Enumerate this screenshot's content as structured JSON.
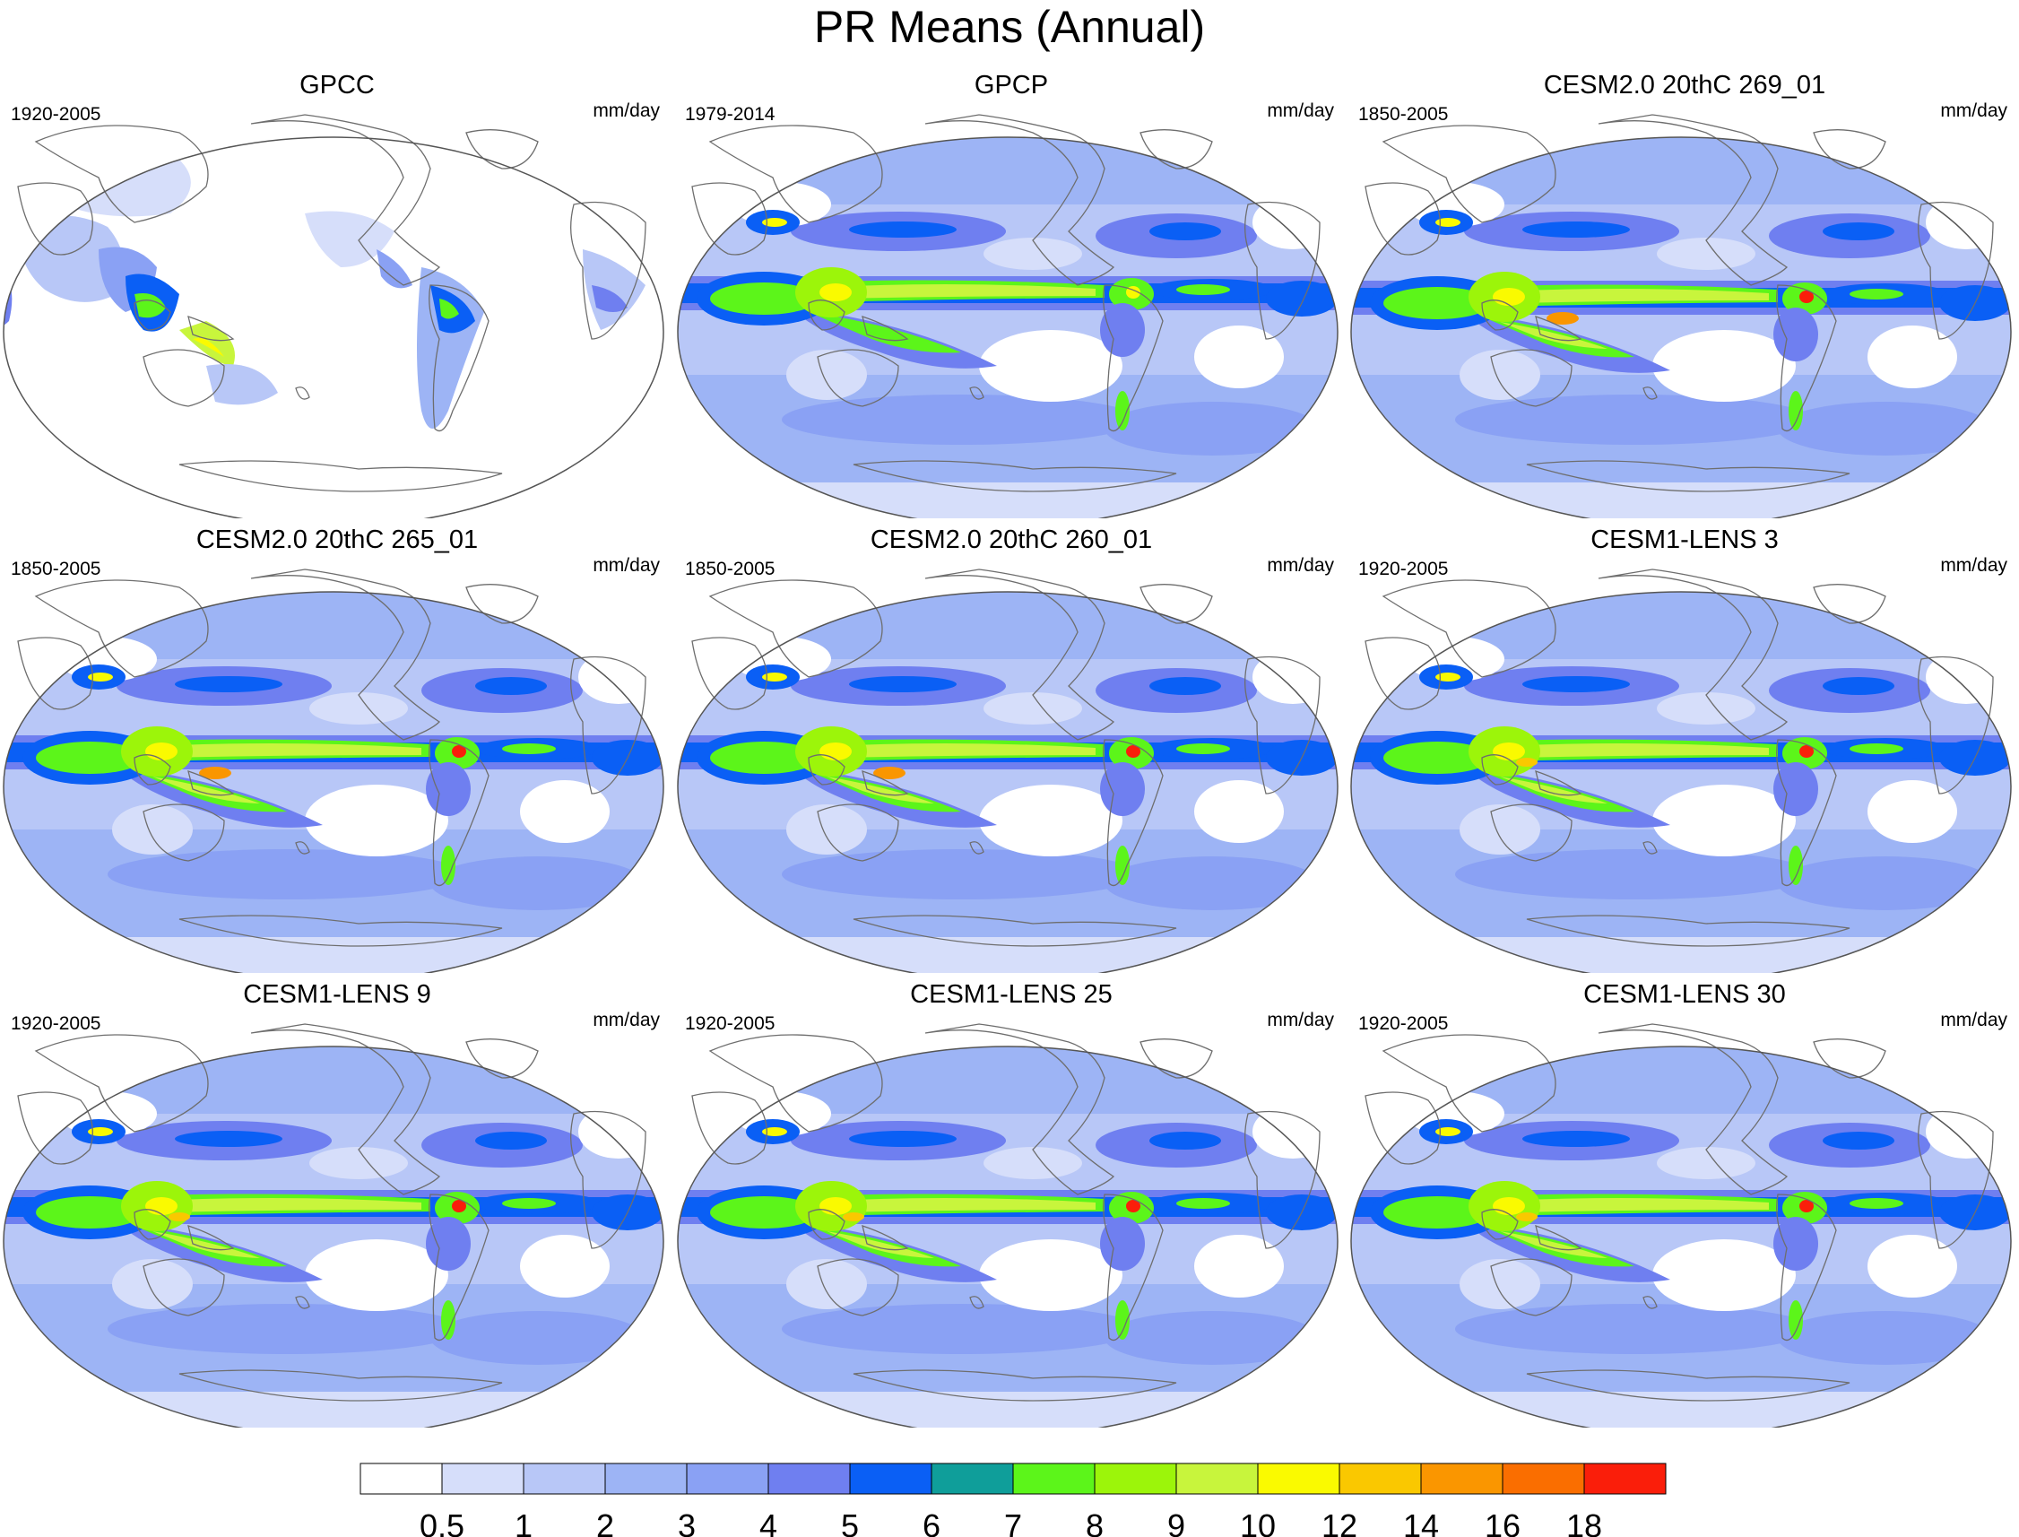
{
  "title": "PR Means (Annual)",
  "colors": {
    "white": "#ffffff",
    "c1": "#d6defa",
    "c2": "#b8c7f7",
    "c3": "#9db4f5",
    "c4": "#8aa1f4",
    "c5": "#6f7ff0",
    "c6": "#0a5ff5",
    "c7": "#0f9e9a",
    "c8": "#5cf51a",
    "c9": "#9cf50a",
    "c10": "#c8f53c",
    "c12": "#fafa00",
    "c14": "#fac800",
    "c16": "#fa9600",
    "c18": "#fa6e00",
    "cmax": "#fa1e0a",
    "coast": "#6e6e6e"
  },
  "panels": [
    {
      "title": "GPCC",
      "years": "1920-2005",
      "units": "mm/day",
      "style": "land"
    },
    {
      "title": "GPCP",
      "years": "1979-2014",
      "units": "mm/day",
      "style": "obs"
    },
    {
      "title": "CESM2.0 20thC 269_01",
      "years": "1850-2005",
      "units": "mm/day",
      "style": "model2"
    },
    {
      "title": "CESM2.0 20thC 265_01",
      "years": "1850-2005",
      "units": "mm/day",
      "style": "model2"
    },
    {
      "title": "CESM2.0 20thC 260_01",
      "years": "1850-2005",
      "units": "mm/day",
      "style": "model2"
    },
    {
      "title": "CESM1-LENS 3",
      "years": "1920-2005",
      "units": "mm/day",
      "style": "model1"
    },
    {
      "title": "CESM1-LENS 9",
      "years": "1920-2005",
      "units": "mm/day",
      "style": "model1"
    },
    {
      "title": "CESM1-LENS 25",
      "years": "1920-2005",
      "units": "mm/day",
      "style": "model1"
    },
    {
      "title": "CESM1-LENS 30",
      "years": "1920-2005",
      "units": "mm/day",
      "style": "model1"
    }
  ],
  "colorbar": {
    "labels": [
      "0.5",
      "1",
      "2",
      "3",
      "4",
      "5",
      "6",
      "7",
      "8",
      "9",
      "10",
      "12",
      "14",
      "16",
      "18"
    ],
    "colors": [
      "#ffffff",
      "#d6defa",
      "#b8c7f7",
      "#9db4f5",
      "#8aa1f4",
      "#6f7ff0",
      "#0a5ff5",
      "#0f9e9a",
      "#5cf51a",
      "#9cf50a",
      "#c8f53c",
      "#fafa00",
      "#fac800",
      "#fa9600",
      "#fa6e00",
      "#fa1e0a"
    ]
  }
}
